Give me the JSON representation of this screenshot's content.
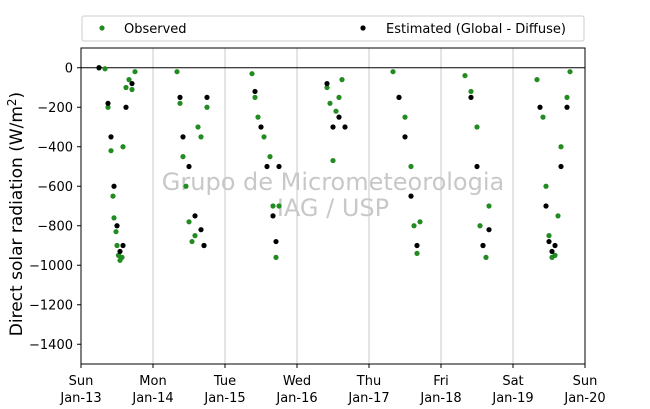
{
  "chart_data": {
    "type": "scatter",
    "ylabel_main": "Direct solar radiation (W/m",
    "ylabel_sup": "2",
    "ylabel_close": ")",
    "ylim": [
      -1500,
      100
    ],
    "yticks": [
      0,
      -200,
      -400,
      -600,
      -800,
      -1000,
      -1200,
      -1400
    ],
    "xlim": [
      "2019-01-13",
      "2019-01-20"
    ],
    "xticks": [
      {
        "day": "Sun",
        "date": "Jan-13"
      },
      {
        "day": "Mon",
        "date": "Jan-14"
      },
      {
        "day": "Tue",
        "date": "Jan-15"
      },
      {
        "day": "Wed",
        "date": "Jan-16"
      },
      {
        "day": "Thu",
        "date": "Jan-17"
      },
      {
        "day": "Fri",
        "date": "Jan-18"
      },
      {
        "day": "Sat",
        "date": "Jan-19"
      },
      {
        "day": "Sun",
        "date": "Jan-20"
      }
    ],
    "grid": "vertical",
    "zero_line": true,
    "legend_position": "above",
    "watermark": [
      "Grupo de Micrometeorologia",
      "IAG / USP"
    ],
    "series": [
      {
        "name": "Observed",
        "color": "#228b22",
        "marker": "dot",
        "points": [
          [
            "2019-01-13T06:00",
            0
          ],
          [
            "2019-01-13T08:00",
            -5
          ],
          [
            "2019-01-13T09:00",
            -200
          ],
          [
            "2019-01-13T10:00",
            -420
          ],
          [
            "2019-01-13T10:40",
            -650
          ],
          [
            "2019-01-13T11:00",
            -760
          ],
          [
            "2019-01-13T11:40",
            -830
          ],
          [
            "2019-01-13T12:00",
            -900
          ],
          [
            "2019-01-13T12:30",
            -950
          ],
          [
            "2019-01-13T13:00",
            -975
          ],
          [
            "2019-01-13T13:40",
            -960
          ],
          [
            "2019-01-13T14:00",
            -400
          ],
          [
            "2019-01-13T15:00",
            -100
          ],
          [
            "2019-01-13T16:00",
            -60
          ],
          [
            "2019-01-13T17:00",
            -110
          ],
          [
            "2019-01-13T18:00",
            -20
          ],
          [
            "2019-01-14T08:00",
            -20
          ],
          [
            "2019-01-14T09:00",
            -180
          ],
          [
            "2019-01-14T10:00",
            -450
          ],
          [
            "2019-01-14T11:00",
            -600
          ],
          [
            "2019-01-14T12:00",
            -780
          ],
          [
            "2019-01-14T13:00",
            -880
          ],
          [
            "2019-01-14T14:00",
            -850
          ],
          [
            "2019-01-14T15:00",
            -300
          ],
          [
            "2019-01-14T16:00",
            -350
          ],
          [
            "2019-01-14T17:00",
            -900
          ],
          [
            "2019-01-14T18:00",
            -200
          ],
          [
            "2019-01-15T09:00",
            -30
          ],
          [
            "2019-01-15T10:00",
            -150
          ],
          [
            "2019-01-15T11:00",
            -250
          ],
          [
            "2019-01-15T13:00",
            -350
          ],
          [
            "2019-01-15T15:00",
            -450
          ],
          [
            "2019-01-15T16:00",
            -700
          ],
          [
            "2019-01-15T17:00",
            -960
          ],
          [
            "2019-01-15T18:00",
            -700
          ],
          [
            "2019-01-16T10:00",
            -100
          ],
          [
            "2019-01-16T11:00",
            -180
          ],
          [
            "2019-01-16T12:00",
            -470
          ],
          [
            "2019-01-16T13:00",
            -220
          ],
          [
            "2019-01-16T14:00",
            -150
          ],
          [
            "2019-01-16T15:00",
            -60
          ],
          [
            "2019-01-17T08:00",
            -20
          ],
          [
            "2019-01-17T10:00",
            -150
          ],
          [
            "2019-01-17T12:00",
            -250
          ],
          [
            "2019-01-17T14:00",
            -500
          ],
          [
            "2019-01-17T15:00",
            -800
          ],
          [
            "2019-01-17T16:00",
            -940
          ],
          [
            "2019-01-17T17:00",
            -780
          ],
          [
            "2019-01-18T08:00",
            -40
          ],
          [
            "2019-01-18T10:00",
            -120
          ],
          [
            "2019-01-18T12:00",
            -300
          ],
          [
            "2019-01-18T13:00",
            -800
          ],
          [
            "2019-01-18T14:00",
            -900
          ],
          [
            "2019-01-18T15:00",
            -960
          ],
          [
            "2019-01-18T16:00",
            -700
          ],
          [
            "2019-01-19T08:00",
            -60
          ],
          [
            "2019-01-19T10:00",
            -250
          ],
          [
            "2019-01-19T11:00",
            -600
          ],
          [
            "2019-01-19T12:00",
            -850
          ],
          [
            "2019-01-19T13:00",
            -960
          ],
          [
            "2019-01-19T14:00",
            -950
          ],
          [
            "2019-01-19T15:00",
            -750
          ],
          [
            "2019-01-19T16:00",
            -400
          ],
          [
            "2019-01-19T18:00",
            -150
          ],
          [
            "2019-01-19T19:00",
            -20
          ]
        ]
      },
      {
        "name": "Estimated (Global - Diffuse)",
        "color": "#000000",
        "marker": "dot",
        "points": [
          [
            "2019-01-13T06:00",
            0
          ],
          [
            "2019-01-13T09:00",
            -180
          ],
          [
            "2019-01-13T10:00",
            -350
          ],
          [
            "2019-01-13T11:00",
            -600
          ],
          [
            "2019-01-13T12:00",
            -800
          ],
          [
            "2019-01-13T13:00",
            -930
          ],
          [
            "2019-01-13T14:00",
            -900
          ],
          [
            "2019-01-13T15:00",
            -200
          ],
          [
            "2019-01-13T17:00",
            -80
          ],
          [
            "2019-01-14T09:00",
            -150
          ],
          [
            "2019-01-14T10:00",
            -350
          ],
          [
            "2019-01-14T12:00",
            -500
          ],
          [
            "2019-01-14T14:00",
            -750
          ],
          [
            "2019-01-14T16:00",
            -820
          ],
          [
            "2019-01-14T17:00",
            -900
          ],
          [
            "2019-01-14T18:00",
            -150
          ],
          [
            "2019-01-15T10:00",
            -120
          ],
          [
            "2019-01-15T12:00",
            -300
          ],
          [
            "2019-01-15T14:00",
            -500
          ],
          [
            "2019-01-15T16:00",
            -750
          ],
          [
            "2019-01-15T17:00",
            -880
          ],
          [
            "2019-01-15T18:00",
            -500
          ],
          [
            "2019-01-16T10:00",
            -80
          ],
          [
            "2019-01-16T12:00",
            -300
          ],
          [
            "2019-01-16T14:00",
            -250
          ],
          [
            "2019-01-16T16:00",
            -300
          ],
          [
            "2019-01-17T10:00",
            -150
          ],
          [
            "2019-01-17T12:00",
            -350
          ],
          [
            "2019-01-17T14:00",
            -650
          ],
          [
            "2019-01-17T16:00",
            -900
          ],
          [
            "2019-01-18T10:00",
            -150
          ],
          [
            "2019-01-18T12:00",
            -500
          ],
          [
            "2019-01-18T14:00",
            -900
          ],
          [
            "2019-01-18T16:00",
            -820
          ],
          [
            "2019-01-19T09:00",
            -200
          ],
          [
            "2019-01-19T11:00",
            -700
          ],
          [
            "2019-01-19T12:00",
            -880
          ],
          [
            "2019-01-19T13:00",
            -930
          ],
          [
            "2019-01-19T14:00",
            -900
          ],
          [
            "2019-01-19T16:00",
            -500
          ],
          [
            "2019-01-19T18:00",
            -200
          ]
        ]
      }
    ]
  }
}
